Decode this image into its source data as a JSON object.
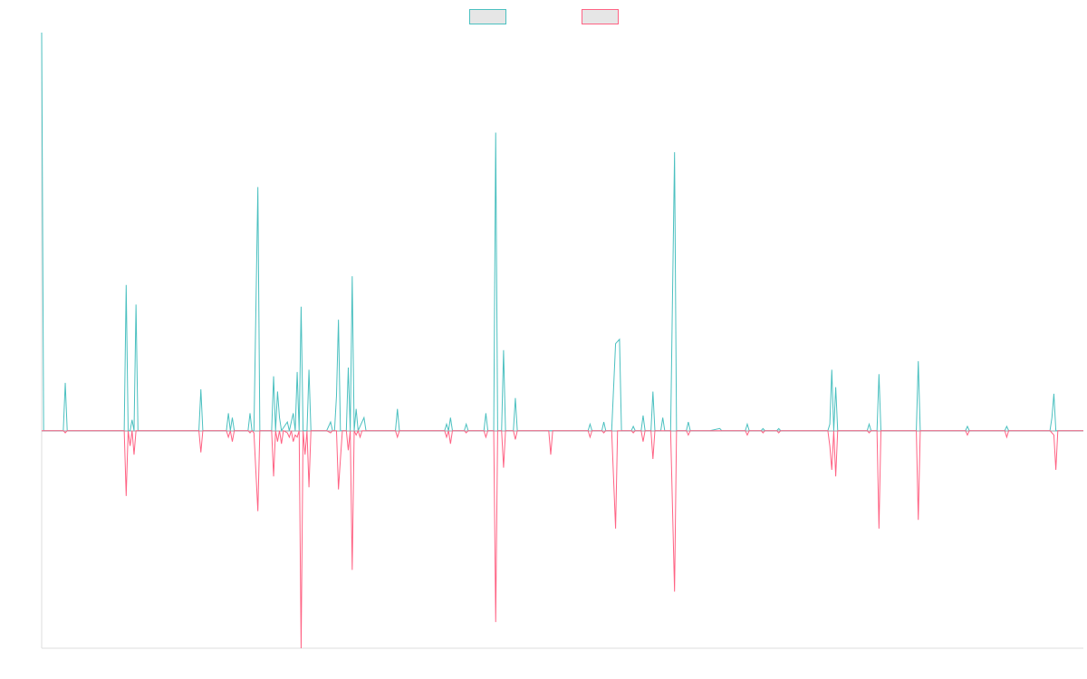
{
  "chart_data": {
    "type": "line",
    "title": "",
    "xlabel": "",
    "ylabel": "",
    "ylim": [
      -100,
      183
    ],
    "grid": false,
    "legend": {
      "placement": "top-center",
      "labels_visible": false
    },
    "series": [
      {
        "color": "#4bc0c0",
        "fill": "#e6e6e6",
        "points": [
          [
            0,
            183
          ],
          [
            1,
            0
          ],
          [
            11,
            0
          ],
          [
            12,
            22
          ],
          [
            13,
            0
          ],
          [
            42,
            0
          ],
          [
            43,
            67
          ],
          [
            44,
            0
          ],
          [
            45,
            0
          ],
          [
            46,
            5
          ],
          [
            47,
            0
          ],
          [
            48,
            58
          ],
          [
            49,
            0
          ],
          [
            50,
            0
          ],
          [
            80,
            0
          ],
          [
            81,
            19
          ],
          [
            82,
            0
          ],
          [
            94,
            0
          ],
          [
            95,
            8
          ],
          [
            96,
            0
          ],
          [
            97,
            6
          ],
          [
            98,
            0
          ],
          [
            105,
            0
          ],
          [
            106,
            8
          ],
          [
            107,
            0
          ],
          [
            108,
            0
          ],
          [
            110,
            112
          ],
          [
            111,
            0
          ],
          [
            117,
            0
          ],
          [
            118,
            25
          ],
          [
            119,
            0
          ],
          [
            120,
            18
          ],
          [
            121,
            6
          ],
          [
            122,
            0
          ],
          [
            125,
            4
          ],
          [
            126,
            0
          ],
          [
            128,
            8
          ],
          [
            129,
            0
          ],
          [
            130,
            27
          ],
          [
            131,
            0
          ],
          [
            132,
            57
          ],
          [
            133,
            0
          ],
          [
            135,
            0
          ],
          [
            136,
            28
          ],
          [
            137,
            0
          ],
          [
            145,
            0
          ],
          [
            147,
            4
          ],
          [
            148,
            0
          ],
          [
            149,
            0
          ],
          [
            150,
            16
          ],
          [
            151,
            51
          ],
          [
            152,
            0
          ],
          [
            155,
            0
          ],
          [
            156,
            29
          ],
          [
            157,
            0
          ],
          [
            158,
            71
          ],
          [
            159,
            0
          ],
          [
            160,
            10
          ],
          [
            161,
            0
          ],
          [
            164,
            6
          ],
          [
            165,
            0
          ],
          [
            167,
            0
          ],
          [
            180,
            0
          ],
          [
            181,
            10
          ],
          [
            182,
            0
          ],
          [
            205,
            0
          ],
          [
            206,
            3
          ],
          [
            207,
            0
          ],
          [
            208,
            6
          ],
          [
            209,
            0
          ],
          [
            215,
            0
          ],
          [
            216,
            3
          ],
          [
            217,
            0
          ],
          [
            225,
            0
          ],
          [
            226,
            8
          ],
          [
            227,
            0
          ],
          [
            230,
            0
          ],
          [
            231,
            137
          ],
          [
            232,
            0
          ],
          [
            234,
            0
          ],
          [
            235,
            37
          ],
          [
            236,
            0
          ],
          [
            240,
            0
          ],
          [
            241,
            15
          ],
          [
            242,
            0
          ],
          [
            250,
            0
          ],
          [
            278,
            0
          ],
          [
            279,
            3
          ],
          [
            280,
            0
          ],
          [
            285,
            0
          ],
          [
            286,
            4
          ],
          [
            287,
            0
          ],
          [
            290,
            0
          ],
          [
            292,
            40
          ],
          [
            294,
            42
          ],
          [
            295,
            0
          ],
          [
            300,
            0
          ],
          [
            301,
            2
          ],
          [
            302,
            0
          ],
          [
            305,
            0
          ],
          [
            306,
            7
          ],
          [
            307,
            0
          ],
          [
            310,
            0
          ],
          [
            311,
            18
          ],
          [
            312,
            0
          ],
          [
            315,
            0
          ],
          [
            316,
            6
          ],
          [
            317,
            0
          ],
          [
            320,
            0
          ],
          [
            322,
            128
          ],
          [
            323,
            0
          ],
          [
            328,
            0
          ],
          [
            329,
            4
          ],
          [
            330,
            0
          ],
          [
            340,
            0
          ],
          [
            345,
            1
          ],
          [
            346,
            0
          ],
          [
            358,
            0
          ],
          [
            359,
            3
          ],
          [
            360,
            0
          ],
          [
            366,
            0
          ],
          [
            367,
            1
          ],
          [
            368,
            0
          ],
          [
            374,
            0
          ],
          [
            375,
            1
          ],
          [
            376,
            0
          ],
          [
            400,
            0
          ],
          [
            401,
            3
          ],
          [
            402,
            28
          ],
          [
            403,
            0
          ],
          [
            404,
            20
          ],
          [
            405,
            0
          ],
          [
            420,
            0
          ],
          [
            421,
            3
          ],
          [
            422,
            0
          ],
          [
            425,
            0
          ],
          [
            426,
            26
          ],
          [
            427,
            0
          ],
          [
            445,
            0
          ],
          [
            446,
            32
          ],
          [
            447,
            0
          ],
          [
            470,
            0
          ],
          [
            471,
            2
          ],
          [
            472,
            0
          ],
          [
            490,
            0
          ],
          [
            491,
            2
          ],
          [
            492,
            0
          ],
          [
            513,
            0
          ],
          [
            514,
            6
          ],
          [
            515,
            17
          ],
          [
            516,
            0
          ],
          [
            530,
            0
          ]
        ]
      },
      {
        "color": "#ff6384",
        "fill": "#e6e6e6",
        "points": [
          [
            0,
            0
          ],
          [
            11,
            0
          ],
          [
            12,
            -1
          ],
          [
            13,
            0
          ],
          [
            42,
            0
          ],
          [
            43,
            -30
          ],
          [
            44,
            0
          ],
          [
            45,
            -7
          ],
          [
            46,
            0
          ],
          [
            47,
            -11
          ],
          [
            48,
            0
          ],
          [
            50,
            0
          ],
          [
            80,
            0
          ],
          [
            81,
            -10
          ],
          [
            82,
            0
          ],
          [
            94,
            0
          ],
          [
            95,
            -3
          ],
          [
            96,
            0
          ],
          [
            97,
            -5
          ],
          [
            98,
            0
          ],
          [
            105,
            0
          ],
          [
            106,
            -1
          ],
          [
            107,
            0
          ],
          [
            108,
            -1
          ],
          [
            110,
            -37
          ],
          [
            111,
            0
          ],
          [
            117,
            0
          ],
          [
            118,
            -21
          ],
          [
            119,
            0
          ],
          [
            120,
            -5
          ],
          [
            121,
            0
          ],
          [
            122,
            -6
          ],
          [
            123,
            0
          ],
          [
            125,
            -1
          ],
          [
            126,
            -3
          ],
          [
            127,
            0
          ],
          [
            128,
            -5
          ],
          [
            129,
            -2
          ],
          [
            130,
            -3
          ],
          [
            131,
            0
          ],
          [
            132,
            -100
          ],
          [
            133,
            0
          ],
          [
            134,
            -11
          ],
          [
            135,
            0
          ],
          [
            136,
            -26
          ],
          [
            137,
            0
          ],
          [
            145,
            0
          ],
          [
            147,
            -1
          ],
          [
            148,
            0
          ],
          [
            149,
            0
          ],
          [
            150,
            0
          ],
          [
            151,
            -27
          ],
          [
            152,
            -13
          ],
          [
            153,
            0
          ],
          [
            155,
            0
          ],
          [
            156,
            -9
          ],
          [
            157,
            0
          ],
          [
            158,
            -64
          ],
          [
            159,
            0
          ],
          [
            160,
            -2
          ],
          [
            161,
            0
          ],
          [
            162,
            -3
          ],
          [
            163,
            0
          ],
          [
            167,
            0
          ],
          [
            180,
            0
          ],
          [
            181,
            -3
          ],
          [
            182,
            0
          ],
          [
            205,
            0
          ],
          [
            206,
            -3
          ],
          [
            207,
            0
          ],
          [
            208,
            -6
          ],
          [
            209,
            0
          ],
          [
            215,
            0
          ],
          [
            216,
            -1
          ],
          [
            217,
            0
          ],
          [
            225,
            0
          ],
          [
            226,
            -3
          ],
          [
            227,
            0
          ],
          [
            230,
            0
          ],
          [
            231,
            -88
          ],
          [
            232,
            0
          ],
          [
            234,
            0
          ],
          [
            235,
            -17
          ],
          [
            236,
            0
          ],
          [
            240,
            0
          ],
          [
            241,
            -4
          ],
          [
            242,
            0
          ],
          [
            250,
            0
          ],
          [
            258,
            0
          ],
          [
            259,
            -11
          ],
          [
            260,
            0
          ],
          [
            278,
            0
          ],
          [
            279,
            -3
          ],
          [
            280,
            0
          ],
          [
            285,
            0
          ],
          [
            286,
            -1
          ],
          [
            287,
            0
          ],
          [
            290,
            0
          ],
          [
            292,
            -45
          ],
          [
            293,
            0
          ],
          [
            300,
            0
          ],
          [
            301,
            -1
          ],
          [
            302,
            0
          ],
          [
            305,
            0
          ],
          [
            306,
            -5
          ],
          [
            307,
            0
          ],
          [
            310,
            0
          ],
          [
            311,
            -13
          ],
          [
            312,
            0
          ],
          [
            315,
            0
          ],
          [
            316,
            0
          ],
          [
            317,
            0
          ],
          [
            320,
            0
          ],
          [
            322,
            -74
          ],
          [
            323,
            0
          ],
          [
            328,
            0
          ],
          [
            329,
            -2
          ],
          [
            330,
            0
          ],
          [
            340,
            0
          ],
          [
            358,
            0
          ],
          [
            359,
            -2
          ],
          [
            360,
            0
          ],
          [
            366,
            0
          ],
          [
            367,
            -1
          ],
          [
            368,
            0
          ],
          [
            374,
            0
          ],
          [
            375,
            -1
          ],
          [
            376,
            0
          ],
          [
            400,
            0
          ],
          [
            401,
            -7
          ],
          [
            402,
            -18
          ],
          [
            403,
            0
          ],
          [
            404,
            -21
          ],
          [
            405,
            0
          ],
          [
            420,
            0
          ],
          [
            421,
            -1
          ],
          [
            422,
            0
          ],
          [
            425,
            0
          ],
          [
            426,
            -45
          ],
          [
            427,
            0
          ],
          [
            445,
            0
          ],
          [
            446,
            -41
          ],
          [
            447,
            0
          ],
          [
            470,
            0
          ],
          [
            471,
            -2
          ],
          [
            472,
            0
          ],
          [
            490,
            0
          ],
          [
            491,
            -3
          ],
          [
            492,
            0
          ],
          [
            513,
            0
          ],
          [
            514,
            -1
          ],
          [
            515,
            -2
          ],
          [
            516,
            -18
          ],
          [
            517,
            0
          ],
          [
            530,
            0
          ]
        ]
      }
    ]
  }
}
